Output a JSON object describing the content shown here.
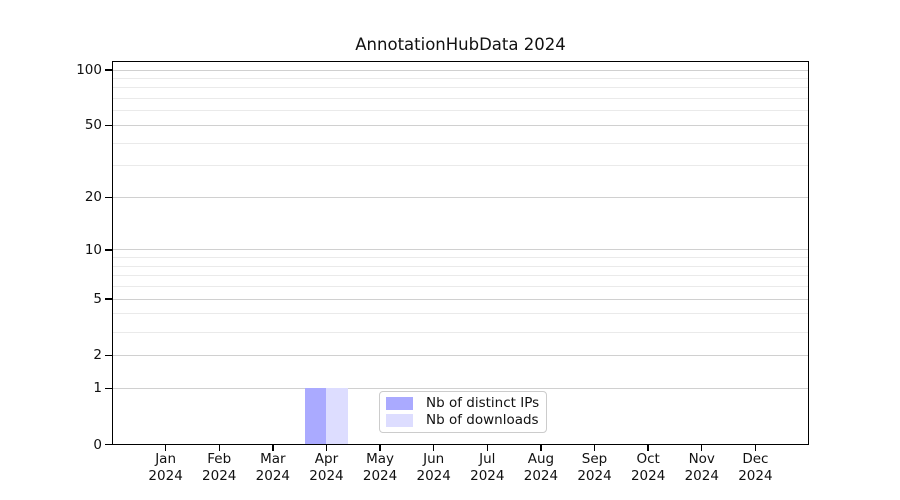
{
  "chart_data": {
    "type": "bar",
    "title": "AnnotationHubData 2024",
    "scale": "log1p",
    "grid": true,
    "ylim": [
      0,
      112
    ],
    "y_ticks": [
      0,
      1,
      2,
      5,
      10,
      20,
      50,
      100
    ],
    "y_minor_gridlines": [
      3,
      4,
      6,
      7,
      8,
      9,
      30,
      40,
      60,
      70,
      80,
      90
    ],
    "categories": [
      "Jan 2024",
      "Feb 2024",
      "Mar 2024",
      "Apr 2024",
      "May 2024",
      "Jun 2024",
      "Jul 2024",
      "Aug 2024",
      "Sep 2024",
      "Oct 2024",
      "Nov 2024",
      "Dec 2024"
    ],
    "series": [
      {
        "name": "Nb of distinct IPs",
        "color": "#aaaaff",
        "values": [
          0,
          0,
          0,
          1,
          0,
          0,
          0,
          0,
          0,
          0,
          0,
          0
        ]
      },
      {
        "name": "Nb of downloads",
        "color": "#ddddff",
        "values": [
          0,
          0,
          0,
          1,
          0,
          0,
          0,
          0,
          0,
          0,
          0,
          0
        ]
      }
    ],
    "legend_position": "inside-bottom-center"
  }
}
